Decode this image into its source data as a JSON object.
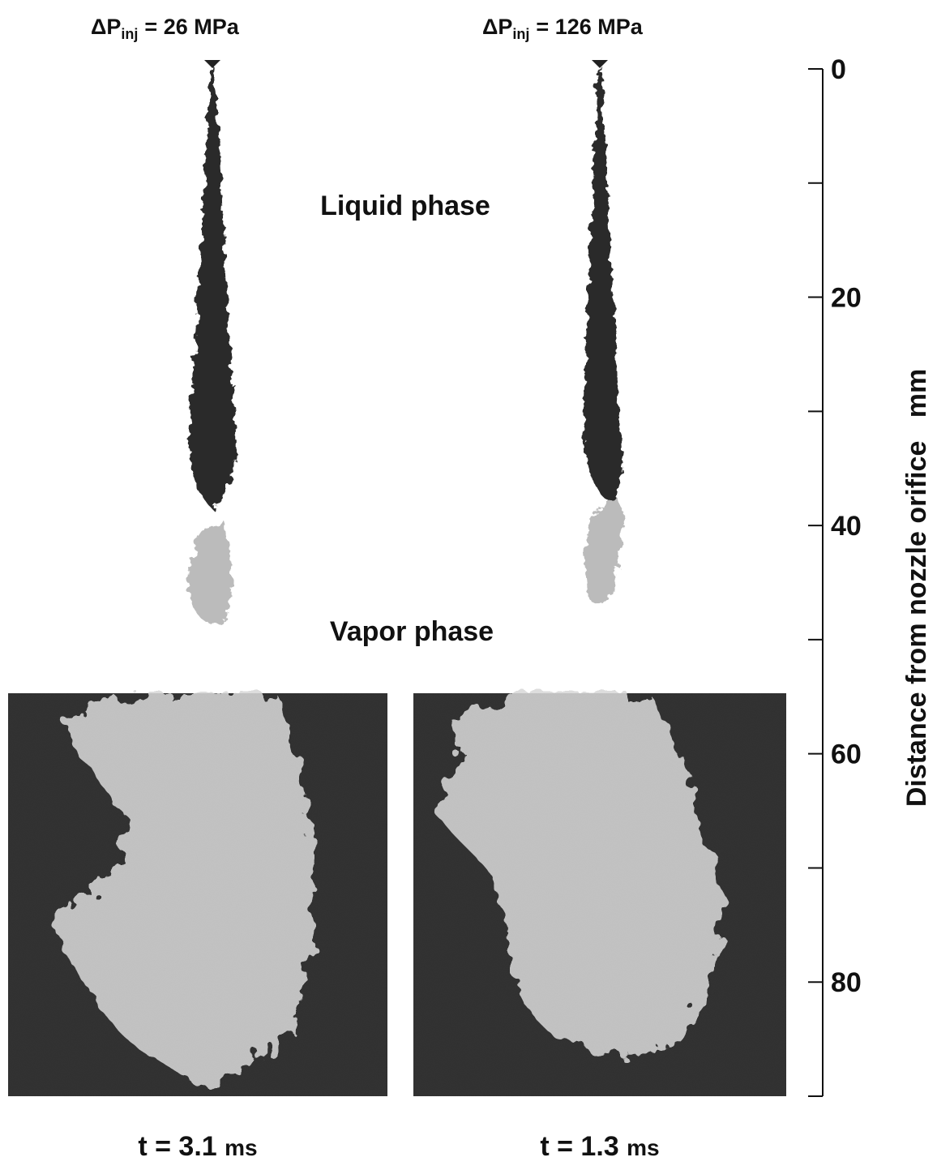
{
  "panels": [
    {
      "pressure": {
        "symbol": "ΔP",
        "subscript": "inj",
        "rest": "= 26 MPa"
      },
      "time": {
        "main": "t = 3.1",
        "unit": "ms"
      }
    },
    {
      "pressure": {
        "symbol": "ΔP",
        "subscript": "inj",
        "rest": "= 126 MPa"
      },
      "time": {
        "main": "t = 1.3",
        "unit": "ms"
      }
    }
  ],
  "labels": {
    "liquid": "Liquid phase",
    "vapor": "Vapor phase"
  },
  "axis": {
    "label": "Distance from nozzle orifice   mm",
    "lim": [
      0,
      90
    ],
    "ticks": [
      0,
      20,
      40,
      60,
      80
    ],
    "minor_ticks": [
      10,
      30,
      50,
      70
    ]
  }
}
